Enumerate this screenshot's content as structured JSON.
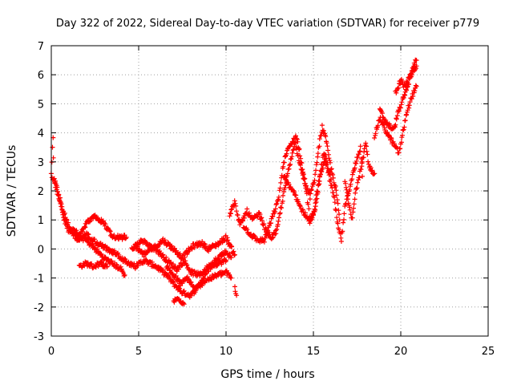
{
  "chart_data": {
    "type": "scatter",
    "title": "Day 322 of 2022, Sidereal Day-to-day VTEC variation (SDTVAR) for receiver p779",
    "xlabel": "GPS time / hours",
    "ylabel": "SDTVAR / TECUs",
    "xlim": [
      0,
      25
    ],
    "ylim": [
      -3,
      7
    ],
    "xticks": [
      "0",
      "5",
      "10",
      "15",
      "20",
      "25"
    ],
    "yticks": [
      "-3",
      "-2",
      "-1",
      "0",
      "1",
      "2",
      "3",
      "4",
      "5",
      "6",
      "7"
    ],
    "grid": true,
    "marker": "+",
    "series": [
      {
        "name": "SDTVAR",
        "color": "#ff0000",
        "tracks": [
          [
            [
              0.0,
              2.6
            ],
            [
              0.1,
              3.9
            ],
            [
              0.15,
              2.4
            ],
            [
              0.3,
              2.0
            ],
            [
              0.5,
              1.7
            ],
            [
              0.7,
              1.1
            ],
            [
              1.0,
              0.6
            ],
            [
              1.3,
              0.7
            ],
            [
              1.6,
              0.4
            ],
            [
              2.0,
              0.9
            ],
            [
              2.5,
              1.1
            ],
            [
              3.0,
              0.9
            ],
            [
              3.5,
              0.4
            ],
            [
              4.0,
              0.4
            ],
            [
              4.3,
              0.4
            ]
          ],
          [
            [
              0.05,
              2.5
            ],
            [
              0.3,
              2.2
            ],
            [
              0.6,
              1.4
            ],
            [
              1.0,
              0.8
            ],
            [
              1.5,
              0.3
            ],
            [
              2.0,
              0.5
            ],
            [
              2.6,
              0.2
            ],
            [
              3.2,
              0.0
            ],
            [
              3.8,
              -0.2
            ],
            [
              4.2,
              -0.4
            ],
            [
              4.8,
              -0.6
            ],
            [
              5.3,
              -0.4
            ],
            [
              6.0,
              -0.6
            ],
            [
              6.6,
              -0.9
            ],
            [
              7.0,
              -1.2
            ],
            [
              7.5,
              -1.5
            ],
            [
              8.0,
              -1.6
            ],
            [
              8.5,
              -1.2
            ],
            [
              9.0,
              -0.7
            ],
            [
              9.5,
              -0.3
            ],
            [
              10.0,
              -0.1
            ],
            [
              10.3,
              -0.3
            ]
          ],
          [
            [
              1.6,
              -0.6
            ],
            [
              2.0,
              -0.5
            ],
            [
              2.4,
              -0.6
            ],
            [
              2.8,
              -0.5
            ],
            [
              3.2,
              -0.6
            ]
          ],
          [
            [
              1.4,
              0.5
            ],
            [
              2.0,
              0.3
            ],
            [
              2.5,
              0.0
            ],
            [
              3.0,
              -0.3
            ],
            [
              3.5,
              -0.5
            ],
            [
              4.0,
              -0.7
            ],
            [
              4.2,
              -0.9
            ]
          ],
          [
            [
              4.8,
              0.1
            ],
            [
              5.3,
              -0.2
            ],
            [
              5.8,
              0.1
            ],
            [
              6.3,
              -0.2
            ],
            [
              6.8,
              -0.5
            ],
            [
              7.2,
              -0.7
            ],
            [
              7.6,
              -0.4
            ],
            [
              8.0,
              -0.8
            ],
            [
              8.5,
              -0.9
            ],
            [
              9.0,
              -0.6
            ],
            [
              9.5,
              -0.5
            ],
            [
              10.0,
              -0.4
            ]
          ],
          [
            [
              4.6,
              0.0
            ],
            [
              5.2,
              0.3
            ],
            [
              5.8,
              0.0
            ],
            [
              6.4,
              0.3
            ],
            [
              7.0,
              0.0
            ],
            [
              7.5,
              -0.3
            ],
            [
              8.1,
              0.1
            ],
            [
              8.6,
              0.2
            ],
            [
              9.0,
              0.0
            ],
            [
              9.6,
              0.2
            ],
            [
              10.0,
              0.4
            ],
            [
              10.5,
              -0.2
            ]
          ],
          [
            [
              6.6,
              -0.6
            ],
            [
              7.0,
              -0.9
            ],
            [
              7.4,
              -1.2
            ],
            [
              7.8,
              -1.0
            ],
            [
              8.2,
              -1.4
            ],
            [
              8.8,
              -1.1
            ],
            [
              9.5,
              -0.9
            ],
            [
              10.0,
              -0.8
            ],
            [
              10.3,
              -1.0
            ]
          ],
          [
            [
              7.0,
              -1.8
            ],
            [
              7.3,
              -1.7
            ],
            [
              7.6,
              -1.9
            ]
          ],
          [
            [
              10.5,
              -1.3
            ],
            [
              10.6,
              -1.6
            ]
          ],
          [
            [
              10.2,
              1.2
            ],
            [
              10.5,
              1.6
            ],
            [
              10.8,
              0.8
            ],
            [
              11.2,
              1.3
            ],
            [
              11.5,
              1.0
            ],
            [
              11.9,
              1.2
            ],
            [
              12.3,
              0.6
            ],
            [
              12.6,
              0.4
            ],
            [
              12.9,
              0.6
            ],
            [
              13.2,
              1.6
            ],
            [
              13.5,
              2.5
            ],
            [
              13.8,
              3.3
            ],
            [
              14.0,
              3.9
            ],
            [
              14.2,
              3.4
            ],
            [
              14.4,
              2.7
            ],
            [
              14.6,
              2.0
            ],
            [
              14.8,
              1.0
            ],
            [
              15.0,
              1.2
            ],
            [
              15.3,
              2.3
            ],
            [
              15.6,
              3.3
            ],
            [
              15.9,
              2.5
            ],
            [
              16.2,
              1.7
            ],
            [
              16.4,
              0.8
            ],
            [
              16.6,
              0.3
            ],
            [
              16.8,
              1.4
            ],
            [
              17.1,
              2.2
            ],
            [
              17.4,
              2.9
            ],
            [
              17.7,
              3.5
            ],
            [
              17.8,
              2.5
            ]
          ],
          [
            [
              11.0,
              0.8
            ],
            [
              11.4,
              0.5
            ],
            [
              11.8,
              0.3
            ],
            [
              12.2,
              0.3
            ],
            [
              12.6,
              1.0
            ],
            [
              13.0,
              1.7
            ],
            [
              13.3,
              3.0
            ],
            [
              13.6,
              3.5
            ],
            [
              13.9,
              3.8
            ],
            [
              14.2,
              3.0
            ],
            [
              14.5,
              2.3
            ],
            [
              14.8,
              1.8
            ],
            [
              15.1,
              2.5
            ],
            [
              15.3,
              3.5
            ],
            [
              15.5,
              4.2
            ],
            [
              15.7,
              3.8
            ],
            [
              16.0,
              2.8
            ],
            [
              16.3,
              2.0
            ],
            [
              16.5,
              1.0
            ]
          ],
          [
            [
              13.3,
              2.5
            ],
            [
              13.6,
              2.2
            ],
            [
              13.9,
              2.0
            ],
            [
              14.2,
              1.5
            ],
            [
              14.5,
              1.2
            ],
            [
              14.8,
              0.9
            ],
            [
              15.1,
              1.3
            ],
            [
              15.4,
              2.6
            ],
            [
              15.7,
              3.2
            ],
            [
              16.0,
              2.4
            ]
          ],
          [
            [
              16.8,
              2.4
            ],
            [
              17.0,
              1.6
            ],
            [
              17.2,
              1.0
            ],
            [
              17.4,
              1.9
            ],
            [
              17.7,
              2.7
            ],
            [
              18.0,
              3.6
            ],
            [
              18.2,
              2.8
            ],
            [
              18.5,
              2.6
            ]
          ],
          [
            [
              18.5,
              3.9
            ],
            [
              18.8,
              4.5
            ],
            [
              19.2,
              4.0
            ],
            [
              19.6,
              3.6
            ],
            [
              19.9,
              3.3
            ],
            [
              20.1,
              3.9
            ],
            [
              20.3,
              4.6
            ],
            [
              20.6,
              5.2
            ],
            [
              20.9,
              5.6
            ]
          ],
          [
            [
              18.8,
              4.8
            ],
            [
              19.1,
              4.4
            ],
            [
              19.4,
              4.2
            ],
            [
              19.6,
              4.1
            ],
            [
              19.8,
              4.6
            ],
            [
              20.1,
              5.1
            ],
            [
              20.4,
              5.6
            ],
            [
              20.6,
              6.0
            ],
            [
              20.9,
              6.3
            ]
          ],
          [
            [
              19.7,
              5.4
            ],
            [
              20.0,
              5.8
            ],
            [
              20.2,
              5.6
            ],
            [
              20.5,
              5.9
            ],
            [
              20.7,
              6.3
            ],
            [
              20.9,
              6.5
            ]
          ]
        ]
      }
    ]
  }
}
